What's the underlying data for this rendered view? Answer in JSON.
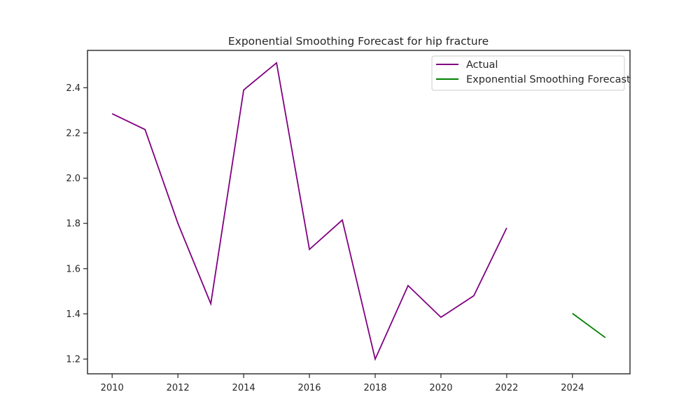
{
  "chart_data": {
    "type": "line",
    "title": "Exponential Smoothing Forecast for hip fracture",
    "xlabel": "",
    "ylabel": "",
    "xlim": [
      2009.25,
      2025.75
    ],
    "ylim": [
      1.135,
      2.565
    ],
    "x_ticks": [
      2010,
      2012,
      2014,
      2016,
      2018,
      2020,
      2022,
      2024
    ],
    "x_tick_labels": [
      "2010",
      "2012",
      "2014",
      "2016",
      "2018",
      "2020",
      "2022",
      "2024"
    ],
    "y_ticks": [
      1.2,
      1.4,
      1.6,
      1.8,
      2.0,
      2.2,
      2.4
    ],
    "y_tick_labels": [
      "1.2",
      "1.4",
      "1.6",
      "1.8",
      "2.0",
      "2.2",
      "2.4"
    ],
    "grid": false,
    "legend_position": "top-right",
    "series": [
      {
        "name": "Actual",
        "color": "#800080",
        "x": [
          2010,
          2011,
          2012,
          2013,
          2014,
          2015,
          2016,
          2017,
          2018,
          2019,
          2020,
          2021,
          2022
        ],
        "values": [
          2.285,
          2.215,
          1.8,
          1.445,
          2.39,
          2.51,
          1.685,
          1.815,
          1.2,
          1.525,
          1.385,
          1.48,
          1.78
        ]
      },
      {
        "name": "Exponential Smoothing Forecast",
        "color": "#008000",
        "x": [
          2024,
          2025
        ],
        "values": [
          1.402,
          1.295
        ]
      }
    ]
  }
}
